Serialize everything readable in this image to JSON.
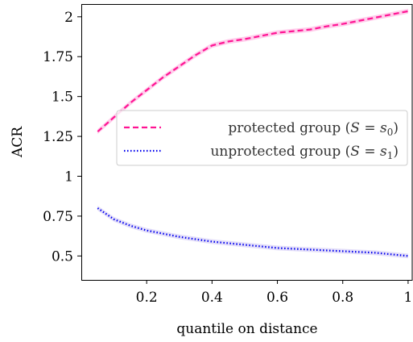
{
  "chart_data": {
    "type": "line",
    "title": "",
    "xlabel": "quantile on distance",
    "ylabel": "ACR",
    "xlim": [
      0.0,
      1.015
    ],
    "ylim": [
      0.35,
      2.08
    ],
    "xticks": [
      0.2,
      0.4,
      0.6,
      0.8,
      1.0
    ],
    "xtick_labels": [
      "0.2",
      "0.4",
      "0.6",
      "0.8",
      "1"
    ],
    "yticks": [
      0.5,
      0.75,
      1.0,
      1.25,
      1.5,
      1.75,
      2.0
    ],
    "ytick_labels": [
      "0.5",
      "0.75",
      "1",
      "1.25",
      "1.5",
      "1.75",
      "2"
    ],
    "grid": false,
    "legend_position": "center-right",
    "series": [
      {
        "name": "protected group (S = s0)",
        "legend_main": "protected group (",
        "legend_math": "S = s",
        "legend_sub": "0",
        "color": "#ff1493",
        "band_color": "#ffc0e6",
        "style": "dashed",
        "x": [
          0.05,
          0.1,
          0.15,
          0.2,
          0.25,
          0.3,
          0.35,
          0.4,
          0.45,
          0.5,
          0.55,
          0.6,
          0.65,
          0.7,
          0.75,
          0.8,
          0.85,
          0.9,
          0.95,
          1.0
        ],
        "y": [
          1.28,
          1.37,
          1.46,
          1.54,
          1.62,
          1.69,
          1.76,
          1.82,
          1.845,
          1.86,
          1.88,
          1.9,
          1.91,
          1.92,
          1.94,
          1.955,
          1.975,
          1.995,
          2.015,
          2.035
        ]
      },
      {
        "name": "unprotected group (S = s1)",
        "legend_main": "unprotected group (",
        "legend_math": "S = s",
        "legend_sub": "1",
        "color": "#0000ee",
        "band_color": "#dcd6f7",
        "style": "dotted",
        "x": [
          0.05,
          0.1,
          0.15,
          0.2,
          0.25,
          0.3,
          0.35,
          0.4,
          0.45,
          0.5,
          0.55,
          0.6,
          0.65,
          0.7,
          0.75,
          0.8,
          0.85,
          0.9,
          0.95,
          1.0
        ],
        "y": [
          0.8,
          0.73,
          0.69,
          0.66,
          0.64,
          0.62,
          0.605,
          0.59,
          0.58,
          0.57,
          0.56,
          0.55,
          0.545,
          0.54,
          0.535,
          0.53,
          0.525,
          0.52,
          0.51,
          0.5
        ]
      }
    ]
  }
}
